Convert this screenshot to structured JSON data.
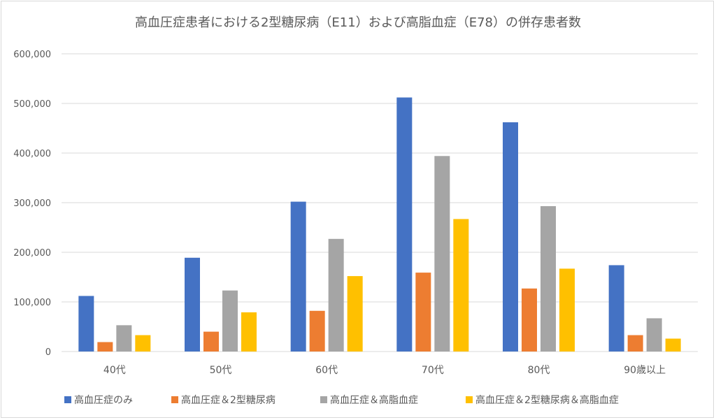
{
  "chart_data": {
    "type": "bar",
    "title": "高血圧症患者における2型糖尿病（E11）および高脂血症（E78）の併存患者数",
    "categories": [
      "40代",
      "50代",
      "60代",
      "70代",
      "80代",
      "90歳以上"
    ],
    "series": [
      {
        "name": "高血圧症のみ",
        "color": "#4472C4",
        "values": [
          112000,
          189000,
          302000,
          512000,
          462000,
          174000
        ]
      },
      {
        "name": "高血圧症＆2型糖尿病",
        "color": "#ED7D31",
        "values": [
          19000,
          40000,
          82000,
          159000,
          127000,
          33000
        ]
      },
      {
        "name": "高血圧症＆高脂血症",
        "color": "#A5A5A5",
        "values": [
          53000,
          123000,
          227000,
          394000,
          293000,
          67000
        ]
      },
      {
        "name": "高血圧症＆2型糖尿病＆高脂血症",
        "color": "#FFC000",
        "values": [
          33000,
          79000,
          152000,
          267000,
          167000,
          26000
        ]
      }
    ],
    "ylim": [
      0,
      600000
    ],
    "yticks": [
      0,
      100000,
      200000,
      300000,
      400000,
      500000,
      600000
    ],
    "ytick_labels": [
      "0",
      "100,000",
      "200,000",
      "300,000",
      "400,000",
      "500,000",
      "600,000"
    ],
    "grid": true,
    "legend_position": "bottom",
    "xlabel": "",
    "ylabel": ""
  }
}
